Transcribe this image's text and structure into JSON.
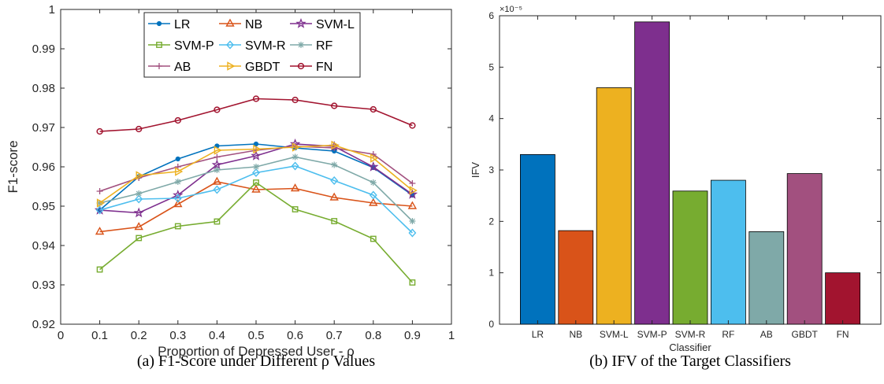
{
  "chart_data": [
    {
      "type": "line",
      "title": "",
      "xlabel": "Proportion of Depressed User - ρ",
      "ylabel": "F1-score",
      "xlim": [
        0,
        1
      ],
      "ylim": [
        0.92,
        1
      ],
      "x_ticks": [
        "0",
        "0.1",
        "0.2",
        "0.3",
        "0.4",
        "0.5",
        "0.6",
        "0.7",
        "0.8",
        "0.9",
        "1"
      ],
      "y_ticks": [
        "0.92",
        "0.93",
        "0.94",
        "0.95",
        "0.96",
        "0.97",
        "0.98",
        "0.99",
        "1"
      ],
      "x": [
        0.1,
        0.2,
        0.3,
        0.4,
        0.5,
        0.6,
        0.7,
        0.8,
        0.9
      ],
      "grid": false,
      "legend_position": "top-center",
      "series": [
        {
          "name": "LR",
          "color": "#0072BD",
          "marker": "dot",
          "values": [
            0.949,
            0.9575,
            0.962,
            0.9653,
            0.9658,
            0.9648,
            0.964,
            0.9598,
            0.9528
          ]
        },
        {
          "name": "NB",
          "color": "#D95319",
          "marker": "triangle-up",
          "values": [
            0.9435,
            0.9447,
            0.9505,
            0.9562,
            0.9542,
            0.9545,
            0.9522,
            0.9508,
            0.95
          ]
        },
        {
          "name": "SVM-L",
          "color": "#7E2F8E",
          "marker": "pentagram",
          "values": [
            0.949,
            0.9483,
            0.9528,
            0.9605,
            0.9628,
            0.9658,
            0.9652,
            0.96,
            0.953
          ]
        },
        {
          "name": "SVM-P",
          "color": "#77AC30",
          "marker": "square",
          "values": [
            0.9339,
            0.9419,
            0.9449,
            0.9461,
            0.956,
            0.9492,
            0.9462,
            0.9417,
            0.9306
          ]
        },
        {
          "name": "SVM-R",
          "color": "#4DBEEE",
          "marker": "diamond",
          "values": [
            0.949,
            0.9518,
            0.952,
            0.9542,
            0.9585,
            0.9602,
            0.9565,
            0.9528,
            0.9432
          ]
        },
        {
          "name": "RF",
          "color": "#7FA9A8",
          "marker": "asterisk",
          "values": [
            0.9508,
            0.9532,
            0.9562,
            0.9592,
            0.96,
            0.9625,
            0.9605,
            0.956,
            0.9462
          ]
        },
        {
          "name": "AB",
          "color": "#A2507F",
          "marker": "plus",
          "values": [
            0.9538,
            0.9572,
            0.96,
            0.9625,
            0.9642,
            0.9652,
            0.9648,
            0.9632,
            0.9558
          ]
        },
        {
          "name": "GBDT",
          "color": "#EDB120",
          "marker": "triangle-right",
          "values": [
            0.9508,
            0.9578,
            0.9588,
            0.9642,
            0.9645,
            0.965,
            0.9655,
            0.9622,
            0.954
          ]
        },
        {
          "name": "FN",
          "color": "#A2142F",
          "marker": "circle",
          "values": [
            0.969,
            0.9696,
            0.9718,
            0.9745,
            0.9773,
            0.977,
            0.9755,
            0.9746,
            0.9705
          ]
        }
      ]
    },
    {
      "type": "bar",
      "title": "",
      "xlabel": "Classifier",
      "ylabel": "IFV",
      "exponent_label": "×10⁻⁵",
      "ylim": [
        0,
        6
      ],
      "y_ticks": [
        "0",
        "1",
        "2",
        "3",
        "4",
        "5",
        "6"
      ],
      "categories": [
        "LR",
        "NB",
        "SVM-L",
        "SVM-P",
        "SVM-R",
        "RF",
        "AB",
        "GBDT",
        "FN"
      ],
      "values": [
        3.3,
        1.82,
        4.6,
        5.88,
        2.59,
        2.8,
        1.8,
        2.93,
        1.0
      ],
      "colors": [
        "#0072BD",
        "#D95319",
        "#EDB120",
        "#7E2F8E",
        "#77AC30",
        "#4DBEEE",
        "#7FA9A8",
        "#A2507F",
        "#A2142F"
      ],
      "grid": false
    }
  ],
  "captions": {
    "a": "(a) F1-Score under Different ρ Values",
    "b": "(b) IFV of the Target Classifiers"
  }
}
